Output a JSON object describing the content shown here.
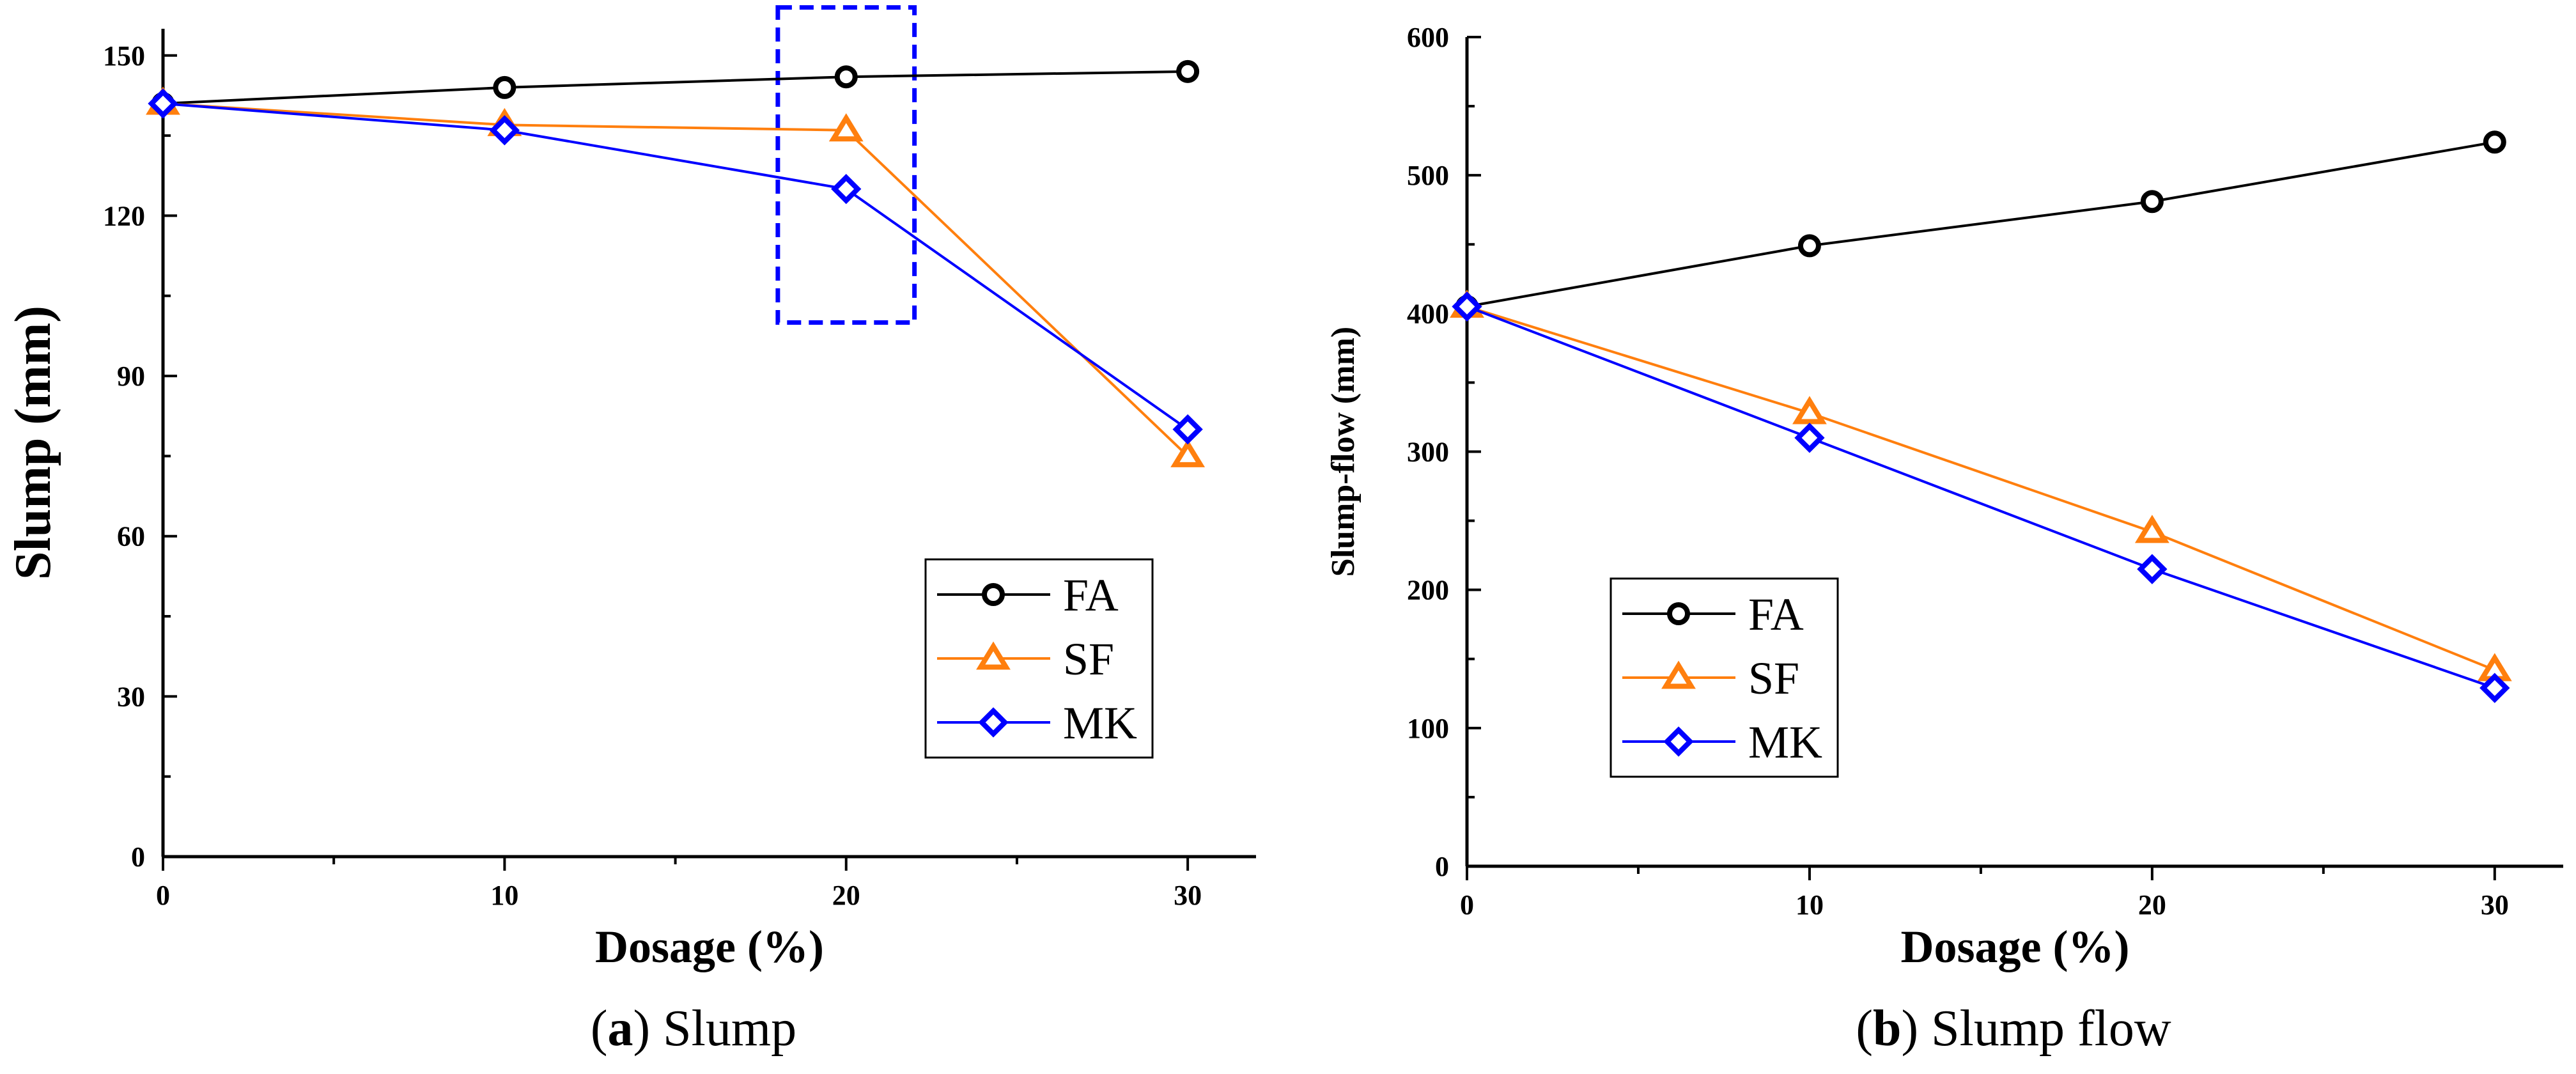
{
  "chart_data": [
    {
      "type": "line",
      "caption_letter": "a",
      "caption_text": "Slump",
      "xlabel": "Dosage (%)",
      "ylabel": "Slump (mm)",
      "x": [
        0,
        10,
        20,
        30
      ],
      "xlim": [
        0,
        32
      ],
      "ylim": [
        0,
        155
      ],
      "xticks": [
        0,
        10,
        20,
        30
      ],
      "yticks": [
        0,
        30,
        60,
        90,
        120,
        150
      ],
      "grid": false,
      "legend": "bottom-right",
      "series": [
        {
          "name": "FA",
          "values": [
            141,
            144,
            146,
            147
          ],
          "color": "#000000",
          "marker": "circle"
        },
        {
          "name": "SF",
          "values": [
            141,
            137,
            136,
            75
          ],
          "color": "#ff7f0e",
          "marker": "triangle"
        },
        {
          "name": "MK",
          "values": [
            141,
            136,
            125,
            80
          ],
          "color": "#0000ff",
          "marker": "diamond"
        }
      ],
      "highlight_box": {
        "x": [
          18,
          22
        ],
        "y": [
          100,
          159
        ],
        "color": "#0000ff",
        "style": "dashed"
      }
    },
    {
      "type": "line",
      "caption_letter": "b",
      "caption_text": "Slump flow",
      "xlabel": "Dosage (%)",
      "ylabel": "Slump-flow (mm)",
      "x": [
        0,
        10,
        20,
        30
      ],
      "xlim": [
        0,
        32
      ],
      "ylim": [
        0,
        600
      ],
      "xticks": [
        0,
        10,
        20,
        30
      ],
      "yticks": [
        0,
        100,
        200,
        300,
        400,
        500,
        600
      ],
      "grid": false,
      "legend": "bottom-left",
      "series": [
        {
          "name": "FA",
          "values": [
            405,
            449,
            481,
            524
          ],
          "color": "#000000",
          "marker": "circle"
        },
        {
          "name": "SF",
          "values": [
            405,
            328,
            242,
            142
          ],
          "color": "#ff7f0e",
          "marker": "triangle"
        },
        {
          "name": "MK",
          "values": [
            405,
            310,
            215,
            129
          ],
          "color": "#0000ff",
          "marker": "diamond"
        }
      ]
    }
  ]
}
